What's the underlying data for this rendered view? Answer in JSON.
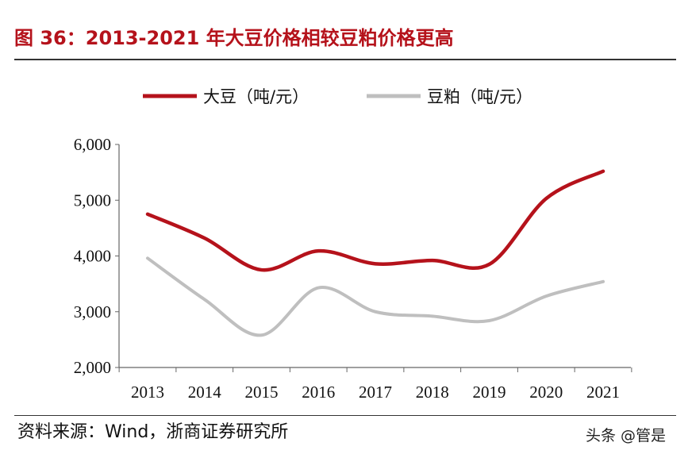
{
  "title": "图 36：2013-2021 年大豆价格相较豆粕价格更高",
  "source": "资料来源：Wind，浙商证券研究所",
  "watermark": "头条 @管是",
  "chart_data": {
    "type": "line",
    "categories": [
      "2013",
      "2014",
      "2015",
      "2016",
      "2017",
      "2018",
      "2019",
      "2020",
      "2021"
    ],
    "ylim": [
      2000,
      6000
    ],
    "yticks": [
      "2,000",
      "3,000",
      "4,000",
      "5,000",
      "6,000"
    ],
    "ytick_values": [
      2000,
      3000,
      4000,
      5000,
      6000
    ],
    "grid": false,
    "legend_position": "top",
    "smooth": true,
    "series": [
      {
        "name": "大豆（吨/元）",
        "color": "#b5121b",
        "values": [
          4750,
          4320,
          3750,
          4090,
          3860,
          3920,
          3850,
          5030,
          5520
        ]
      },
      {
        "name": "豆粕（吨/元）",
        "color": "#bfbfbf",
        "values": [
          3960,
          3220,
          2580,
          3430,
          3000,
          2920,
          2840,
          3280,
          3540
        ]
      }
    ]
  }
}
